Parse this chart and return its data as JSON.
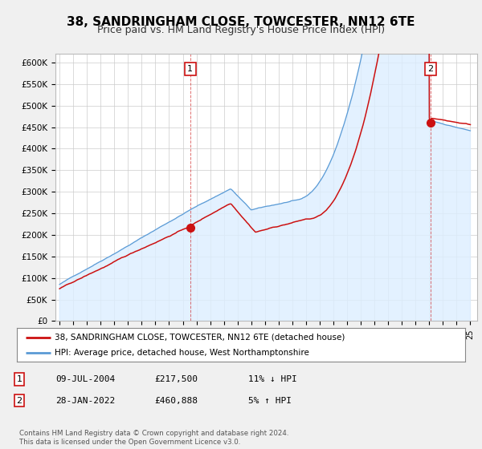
{
  "title": "38, SANDRINGHAM CLOSE, TOWCESTER, NN12 6TE",
  "subtitle": "Price paid vs. HM Land Registry's House Price Index (HPI)",
  "title_fontsize": 11,
  "subtitle_fontsize": 9,
  "ylim": [
    0,
    620000
  ],
  "yticks": [
    0,
    50000,
    100000,
    150000,
    200000,
    250000,
    300000,
    350000,
    400000,
    450000,
    500000,
    550000,
    600000
  ],
  "ytick_labels": [
    "£0",
    "£50K",
    "£100K",
    "£150K",
    "£200K",
    "£250K",
    "£300K",
    "£350K",
    "£400K",
    "£450K",
    "£500K",
    "£550K",
    "£600K"
  ],
  "hpi_color": "#5b9bd5",
  "hpi_fill_color": "#ddeeff",
  "price_color": "#cc1111",
  "sale1_year": 2004.54,
  "sale1_value": 217500,
  "sale2_year": 2022.08,
  "sale2_value": 460888,
  "legend_line1": "38, SANDRINGHAM CLOSE, TOWCESTER, NN12 6TE (detached house)",
  "legend_line2": "HPI: Average price, detached house, West Northamptonshire",
  "annotation1_date": "09-JUL-2004",
  "annotation1_price": "£217,500",
  "annotation1_hpi": "11% ↓ HPI",
  "annotation2_date": "28-JAN-2022",
  "annotation2_price": "£460,888",
  "annotation2_hpi": "5% ↑ HPI",
  "footer": "Contains HM Land Registry data © Crown copyright and database right 2024.\nThis data is licensed under the Open Government Licence v3.0.",
  "background_color": "#f0f0f0",
  "plot_bg_color": "#ffffff",
  "grid_color": "#cccccc"
}
